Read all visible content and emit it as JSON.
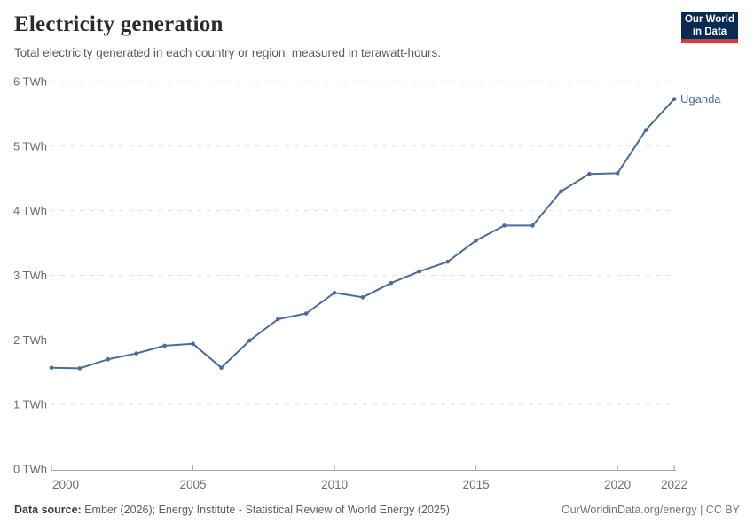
{
  "header": {
    "title": "Electricity generation",
    "subtitle": "Total electricity generated in each country or region, measured in terawatt-hours.",
    "logo": {
      "line1": "Our World",
      "line2": "in Data",
      "bg_color": "#0b2a51",
      "accent_color": "#dc3a34"
    }
  },
  "chart_data": {
    "type": "line",
    "title": "Electricity generation",
    "unit": "TWh",
    "xlim": [
      2000,
      2022
    ],
    "ylim": [
      0,
      6
    ],
    "grid": "horizontal-dashed",
    "legend_position": "end-of-line-label",
    "x": [
      2000,
      2001,
      2002,
      2003,
      2004,
      2005,
      2006,
      2007,
      2008,
      2009,
      2010,
      2011,
      2012,
      2013,
      2014,
      2015,
      2016,
      2017,
      2018,
      2019,
      2020,
      2021,
      2022
    ],
    "series": [
      {
        "name": "Uganda",
        "values": [
          1.57,
          1.56,
          1.7,
          1.79,
          1.91,
          1.94,
          1.57,
          1.99,
          2.32,
          2.41,
          2.73,
          2.66,
          2.88,
          3.06,
          3.21,
          3.54,
          3.77,
          3.77,
          4.3,
          4.57,
          4.58,
          5.25,
          5.73
        ]
      }
    ],
    "x_ticks": [
      {
        "year": 2000,
        "label": "2000"
      },
      {
        "year": 2005,
        "label": "2005"
      },
      {
        "year": 2010,
        "label": "2010"
      },
      {
        "year": 2015,
        "label": "2015"
      },
      {
        "year": 2020,
        "label": "2020"
      },
      {
        "year": 2022,
        "label": "2022"
      }
    ],
    "y_ticks": [
      {
        "value": 0,
        "label": "0 TWh"
      },
      {
        "value": 1,
        "label": "1 TWh"
      },
      {
        "value": 2,
        "label": "2 TWh"
      },
      {
        "value": 3,
        "label": "3 TWh"
      },
      {
        "value": 4,
        "label": "4 TWh"
      },
      {
        "value": 5,
        "label": "5 TWh"
      },
      {
        "value": 6,
        "label": "6 TWh"
      }
    ],
    "colors": {
      "line": "#4c6a9c",
      "entity_label": "#4c6a9c",
      "gridline": "#e2e2e2",
      "axis": "#a5a5a5",
      "tick_label": "#6d6d6d"
    }
  },
  "footer": {
    "source_label": "Data source:",
    "source_text": " Ember (2026); Energy Institute - Statistical Review of World Energy (2025)",
    "right_text": "OurWorldinData.org/energy | CC BY"
  }
}
